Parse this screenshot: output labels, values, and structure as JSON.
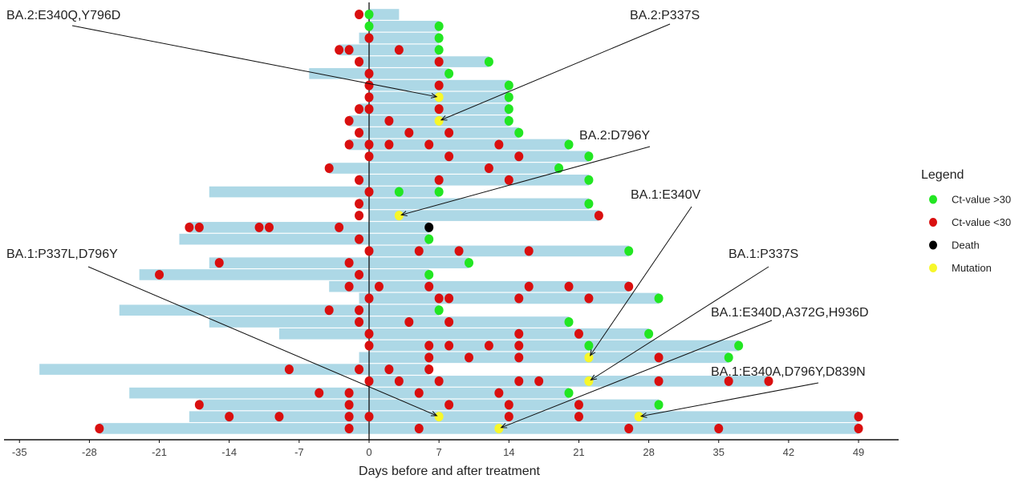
{
  "chart_data": {
    "type": "swimmer",
    "xlabel": "Days before and after treatment",
    "ylabel": "",
    "xlim": [
      -36,
      51
    ],
    "xticks": [
      -35,
      -28,
      -21,
      -14,
      -7,
      0,
      7,
      14,
      21,
      28,
      35,
      42,
      49
    ],
    "grid": false,
    "reference_line_x": 0,
    "colors": {
      "bar": "#add8e6",
      "green": "#22e622",
      "red": "#d90f0f",
      "black": "#000000",
      "yellow": "#f7f72a"
    },
    "legend": {
      "title": "Legend",
      "position": "right",
      "items": [
        {
          "key": "green",
          "label": "Ct-value >30"
        },
        {
          "key": "red",
          "label": "Ct-value <30"
        },
        {
          "key": "black",
          "label": "Death"
        },
        {
          "key": "yellow",
          "label": "Mutation"
        }
      ]
    },
    "rows": [
      {
        "bar": [
          0,
          3
        ],
        "points": [
          [
            -1,
            "red"
          ],
          [
            0,
            "green"
          ]
        ]
      },
      {
        "bar": [
          0,
          7
        ],
        "points": [
          [
            0,
            "green"
          ],
          [
            7,
            "green"
          ]
        ]
      },
      {
        "bar": [
          -1,
          7
        ],
        "points": [
          [
            0,
            "red"
          ],
          [
            7,
            "green"
          ]
        ]
      },
      {
        "bar": [
          -3,
          7
        ],
        "points": [
          [
            -3,
            "red"
          ],
          [
            -2,
            "red"
          ],
          [
            3,
            "red"
          ],
          [
            7,
            "green"
          ]
        ]
      },
      {
        "bar": [
          -1,
          12
        ],
        "points": [
          [
            -1,
            "red"
          ],
          [
            7,
            "red"
          ],
          [
            12,
            "green"
          ]
        ]
      },
      {
        "bar": [
          -6,
          8
        ],
        "points": [
          [
            0,
            "red"
          ],
          [
            8,
            "green"
          ]
        ]
      },
      {
        "bar": [
          0,
          14
        ],
        "points": [
          [
            0,
            "red"
          ],
          [
            7,
            "red"
          ],
          [
            14,
            "green"
          ]
        ]
      },
      {
        "bar": [
          0,
          14
        ],
        "points": [
          [
            0,
            "red"
          ],
          [
            7,
            "yellow"
          ],
          [
            14,
            "green"
          ]
        ]
      },
      {
        "bar": [
          -1,
          14
        ],
        "points": [
          [
            -1,
            "red"
          ],
          [
            0,
            "red"
          ],
          [
            7,
            "red"
          ],
          [
            14,
            "green"
          ]
        ]
      },
      {
        "bar": [
          -2,
          14
        ],
        "points": [
          [
            -2,
            "red"
          ],
          [
            2,
            "red"
          ],
          [
            7,
            "yellow"
          ],
          [
            14,
            "green"
          ]
        ]
      },
      {
        "bar": [
          -1,
          15
        ],
        "points": [
          [
            -1,
            "red"
          ],
          [
            4,
            "red"
          ],
          [
            8,
            "red"
          ],
          [
            15,
            "green"
          ]
        ]
      },
      {
        "bar": [
          -2,
          20
        ],
        "points": [
          [
            -2,
            "red"
          ],
          [
            0,
            "red"
          ],
          [
            2,
            "red"
          ],
          [
            6,
            "red"
          ],
          [
            13,
            "red"
          ],
          [
            20,
            "green"
          ]
        ]
      },
      {
        "bar": [
          0,
          22
        ],
        "points": [
          [
            0,
            "red"
          ],
          [
            8,
            "red"
          ],
          [
            15,
            "red"
          ],
          [
            22,
            "green"
          ]
        ]
      },
      {
        "bar": [
          -4,
          19
        ],
        "points": [
          [
            -4,
            "red"
          ],
          [
            12,
            "red"
          ],
          [
            19,
            "green"
          ]
        ]
      },
      {
        "bar": [
          -1,
          22
        ],
        "points": [
          [
            -1,
            "red"
          ],
          [
            7,
            "red"
          ],
          [
            14,
            "red"
          ],
          [
            22,
            "green"
          ]
        ]
      },
      {
        "bar": [
          -16,
          7
        ],
        "points": [
          [
            0,
            "red"
          ],
          [
            3,
            "green"
          ],
          [
            7,
            "green"
          ]
        ]
      },
      {
        "bar": [
          -1,
          22
        ],
        "points": [
          [
            -1,
            "red"
          ],
          [
            22,
            "green"
          ]
        ]
      },
      {
        "bar": [
          0,
          23
        ],
        "points": [
          [
            -1,
            "red"
          ],
          [
            3,
            "yellow"
          ],
          [
            23,
            "red"
          ]
        ]
      },
      {
        "bar": [
          -18,
          6
        ],
        "points": [
          [
            -18,
            "red"
          ],
          [
            -17,
            "red"
          ],
          [
            -11,
            "red"
          ],
          [
            -10,
            "red"
          ],
          [
            -3,
            "red"
          ],
          [
            6,
            "black"
          ]
        ]
      },
      {
        "bar": [
          -19,
          6
        ],
        "points": [
          [
            -1,
            "red"
          ],
          [
            6,
            "green"
          ]
        ]
      },
      {
        "bar": [
          0,
          26
        ],
        "points": [
          [
            0,
            "red"
          ],
          [
            5,
            "red"
          ],
          [
            9,
            "red"
          ],
          [
            16,
            "red"
          ],
          [
            26,
            "green"
          ]
        ]
      },
      {
        "bar": [
          -16,
          10
        ],
        "points": [
          [
            -15,
            "red"
          ],
          [
            -2,
            "red"
          ],
          [
            10,
            "green"
          ]
        ]
      },
      {
        "bar": [
          -23,
          6
        ],
        "points": [
          [
            -21,
            "red"
          ],
          [
            -1,
            "red"
          ],
          [
            6,
            "green"
          ]
        ]
      },
      {
        "bar": [
          -4,
          26
        ],
        "points": [
          [
            -2,
            "red"
          ],
          [
            1,
            "red"
          ],
          [
            6,
            "red"
          ],
          [
            16,
            "red"
          ],
          [
            20,
            "red"
          ],
          [
            26,
            "red"
          ]
        ]
      },
      {
        "bar": [
          -1,
          29
        ],
        "points": [
          [
            0,
            "red"
          ],
          [
            7,
            "red"
          ],
          [
            8,
            "red"
          ],
          [
            15,
            "red"
          ],
          [
            22,
            "red"
          ],
          [
            29,
            "green"
          ]
        ]
      },
      {
        "bar": [
          -25,
          7
        ],
        "points": [
          [
            -4,
            "red"
          ],
          [
            -1,
            "red"
          ],
          [
            7,
            "green"
          ]
        ]
      },
      {
        "bar": [
          -16,
          20
        ],
        "points": [
          [
            -1,
            "red"
          ],
          [
            4,
            "red"
          ],
          [
            8,
            "red"
          ],
          [
            20,
            "green"
          ]
        ]
      },
      {
        "bar": [
          -9,
          28
        ],
        "points": [
          [
            0,
            "red"
          ],
          [
            15,
            "red"
          ],
          [
            21,
            "red"
          ],
          [
            28,
            "green"
          ]
        ]
      },
      {
        "bar": [
          0,
          37
        ],
        "points": [
          [
            0,
            "red"
          ],
          [
            6,
            "red"
          ],
          [
            8,
            "red"
          ],
          [
            12,
            "red"
          ],
          [
            15,
            "red"
          ],
          [
            22,
            "green"
          ],
          [
            37,
            "green"
          ]
        ]
      },
      {
        "bar": [
          -1,
          36
        ],
        "points": [
          [
            6,
            "red"
          ],
          [
            10,
            "red"
          ],
          [
            15,
            "red"
          ],
          [
            22,
            "yellow"
          ],
          [
            29,
            "red"
          ],
          [
            36,
            "green"
          ]
        ]
      },
      {
        "bar": [
          -33,
          6
        ],
        "points": [
          [
            -8,
            "red"
          ],
          [
            -1,
            "red"
          ],
          [
            2,
            "red"
          ],
          [
            6,
            "red"
          ]
        ]
      },
      {
        "bar": [
          0,
          40
        ],
        "points": [
          [
            0,
            "red"
          ],
          [
            3,
            "red"
          ],
          [
            7,
            "red"
          ],
          [
            15,
            "red"
          ],
          [
            17,
            "red"
          ],
          [
            22,
            "yellow"
          ],
          [
            29,
            "red"
          ],
          [
            36,
            "red"
          ],
          [
            40,
            "red"
          ]
        ]
      },
      {
        "bar": [
          -24,
          20
        ],
        "points": [
          [
            -5,
            "red"
          ],
          [
            -2,
            "red"
          ],
          [
            5,
            "red"
          ],
          [
            13,
            "red"
          ],
          [
            20,
            "green"
          ]
        ]
      },
      {
        "bar": [
          -17,
          29
        ],
        "points": [
          [
            -17,
            "red"
          ],
          [
            -2,
            "red"
          ],
          [
            8,
            "red"
          ],
          [
            14,
            "red"
          ],
          [
            21,
            "red"
          ],
          [
            29,
            "green"
          ]
        ]
      },
      {
        "bar": [
          -18,
          49
        ],
        "points": [
          [
            -14,
            "red"
          ],
          [
            -9,
            "red"
          ],
          [
            -2,
            "red"
          ],
          [
            0,
            "red"
          ],
          [
            7,
            "yellow"
          ],
          [
            14,
            "red"
          ],
          [
            21,
            "red"
          ],
          [
            27,
            "yellow"
          ],
          [
            49,
            "red"
          ]
        ]
      },
      {
        "bar": [
          -27,
          49
        ],
        "points": [
          [
            -27,
            "red"
          ],
          [
            -2,
            "red"
          ],
          [
            5,
            "red"
          ],
          [
            13,
            "yellow"
          ],
          [
            26,
            "red"
          ],
          [
            35,
            "red"
          ],
          [
            49,
            "red"
          ]
        ]
      }
    ],
    "annotations": [
      {
        "text": "BA.2:E340Q,Y796D",
        "row": 8,
        "day": 7
      },
      {
        "text": "BA.2:P337S",
        "row": 10,
        "day": 7
      },
      {
        "text": "BA.2:D796Y",
        "row": 18,
        "day": 3
      },
      {
        "text": "BA.1:E340V",
        "row": 30,
        "day": 22
      },
      {
        "text": "BA.1:P337S",
        "row": 32,
        "day": 22
      },
      {
        "text": "BA.1:P337L,D796Y",
        "row": 35,
        "day": 7
      },
      {
        "text": "BA.1:E340D,A372G,H936D",
        "row": 36,
        "day": 13
      },
      {
        "text": "BA.1:E340A,D796Y,D839N",
        "row": 35,
        "day": 27
      }
    ]
  }
}
